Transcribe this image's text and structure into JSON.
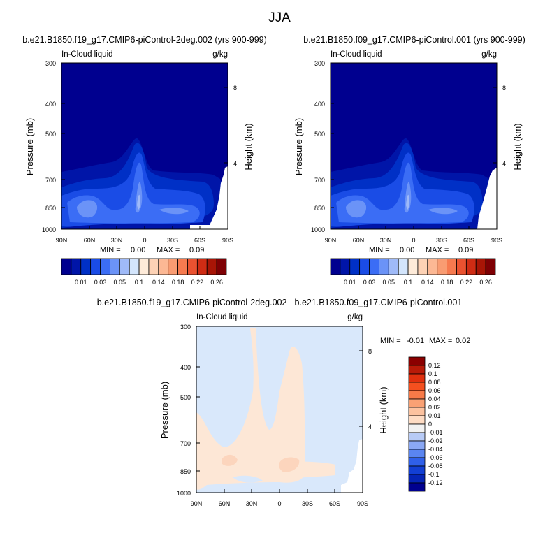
{
  "figure": {
    "title": "JJA"
  },
  "chart_data": [
    {
      "type": "heatmap",
      "panel": "case",
      "title": "b.e21.B1850.f19_g17.CMIP6-piControl-2deg.002 (yrs 900-999)",
      "left_label": "In-Cloud liquid",
      "right_label": "g/kg",
      "ylabel": "Pressure (mb)",
      "ylabel_right": "Height (km)",
      "x_ticks": [
        "90N",
        "60N",
        "30N",
        "0",
        "30S",
        "60S",
        "90S"
      ],
      "y_ticks": [
        "300",
        "400",
        "500",
        "700",
        "850",
        "1000"
      ],
      "y_ticks_right": [
        "8",
        "4"
      ],
      "ylim": [
        1000,
        300
      ],
      "min_label": "MIN =",
      "min_value": "0.00",
      "max_label": "MAX =",
      "max_value": "0.09",
      "colorbar_labels": [
        "0.01",
        "0.03",
        "0.05",
        "0.1",
        "0.14",
        "0.18",
        "0.22",
        "0.26"
      ]
    },
    {
      "type": "heatmap",
      "panel": "control",
      "title": "b.e21.B1850.f09_g17.CMIP6-piControl.001 (yrs 900-999)",
      "left_label": "In-Cloud liquid",
      "right_label": "g/kg",
      "ylabel": "Pressure (mb)",
      "ylabel_right": "Height (km)",
      "x_ticks": [
        "90N",
        "60N",
        "30N",
        "0",
        "30S",
        "60S",
        "90S"
      ],
      "y_ticks": [
        "300",
        "400",
        "500",
        "700",
        "850",
        "1000"
      ],
      "y_ticks_right": [
        "8",
        "4"
      ],
      "ylim": [
        1000,
        300
      ],
      "min_label": "MIN =",
      "min_value": "0.00",
      "max_label": "MAX =",
      "max_value": "0.09",
      "colorbar_labels": [
        "0.01",
        "0.03",
        "0.05",
        "0.1",
        "0.14",
        "0.18",
        "0.22",
        "0.26"
      ]
    },
    {
      "type": "heatmap",
      "panel": "difference",
      "title": "b.e21.B1850.f19_g17.CMIP6-piControl-2deg.002 - b.e21.B1850.f09_g17.CMIP6-piControl.001",
      "left_label": "In-Cloud liquid",
      "right_label": "g/kg",
      "ylabel": "Pressure (mb)",
      "ylabel_right": "Height (km)",
      "x_ticks": [
        "90N",
        "60N",
        "30N",
        "0",
        "30S",
        "60S",
        "90S"
      ],
      "y_ticks": [
        "300",
        "400",
        "500",
        "700",
        "850",
        "1000"
      ],
      "y_ticks_right": [
        "8",
        "4"
      ],
      "ylim": [
        1000,
        300
      ],
      "min_label": "MIN =",
      "min_value": "-0.01",
      "max_label": "MAX =",
      "max_value": "0.02",
      "colorbar_labels": [
        "0.12",
        "0.1",
        "0.08",
        "0.06",
        "0.04",
        "0.02",
        "0.01",
        "0",
        "-0.01",
        "-0.02",
        "-0.04",
        "-0.06",
        "-0.08",
        "-0.1",
        "-0.12"
      ]
    }
  ],
  "colors": {
    "blue_scale": [
      "#00008f",
      "#0015a8",
      "#0030c6",
      "#1a4ce6",
      "#3b6df5",
      "#6b93f7",
      "#9fbaf8",
      "#d3e5fc"
    ],
    "red_scale": [
      "#feebd9",
      "#fdd2b5",
      "#fcb894",
      "#f99c72",
      "#f67a4f",
      "#ea5230",
      "#cf2c14",
      "#a81506",
      "#7e0004"
    ],
    "div_pos": [
      "#8b0000",
      "#b81a08",
      "#e0300e",
      "#f4501f",
      "#f77a48",
      "#f9a174",
      "#fcc29f",
      "#fedcc4"
    ],
    "div_neg": [
      "#f2f2f2",
      "#b8cbf6",
      "#8aa8f4",
      "#5a85f1",
      "#2f60ea",
      "#123fd4",
      "#0524b5",
      "#00008f"
    ],
    "diff_light_blue": "#d9e8fb",
    "diff_light_orange": "#fde7d6",
    "diff_orange": "#fcd5bd"
  }
}
